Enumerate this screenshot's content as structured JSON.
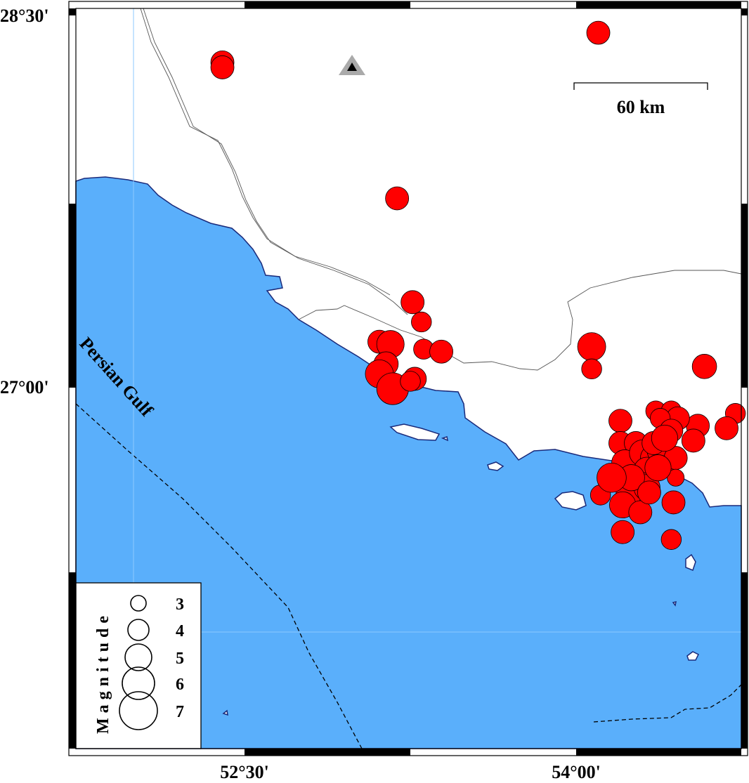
{
  "map": {
    "sea_label": "Persian Gulf",
    "scale_bar": {
      "label": "60 km",
      "length_km": 60
    },
    "lon_ticks": [
      {
        "label": "52°30'",
        "lon": 52.5
      },
      {
        "label": "54°00'",
        "lon": 54.0
      }
    ],
    "lat_ticks": [
      {
        "label": "28°30'",
        "lat": 28.5
      },
      {
        "label": "27°00'",
        "lat": 27.0
      }
    ],
    "colors": {
      "sea": "#5aaffb",
      "land": "#ffffff",
      "event": "#ff0000",
      "coastline": "#1a2a7a",
      "station": "#000000",
      "station_halo": "#aaaaaa"
    },
    "station": {
      "symbol": "triangle",
      "lon": 52.99,
      "lat": 28.29
    },
    "legend": {
      "title": "Magnitude",
      "magnitudes": [
        {
          "label": "3",
          "mag": 3
        },
        {
          "label": "4",
          "mag": 4
        },
        {
          "label": "5",
          "mag": 5
        },
        {
          "label": "6",
          "mag": 6
        },
        {
          "label": "7",
          "mag": 7
        }
      ]
    },
    "events": [
      {
        "lon": 54.1,
        "lat": 28.43,
        "mag": 4
      },
      {
        "lon": 52.4,
        "lat": 28.31,
        "mag": 4
      },
      {
        "lon": 52.4,
        "lat": 28.29,
        "mag": 4
      },
      {
        "lon": 53.19,
        "lat": 27.76,
        "mag": 4
      },
      {
        "lon": 53.26,
        "lat": 27.34,
        "mag": 4
      },
      {
        "lon": 53.3,
        "lat": 27.26,
        "mag": 3.5
      },
      {
        "lon": 53.11,
        "lat": 27.18,
        "mag": 4
      },
      {
        "lon": 53.16,
        "lat": 27.17,
        "mag": 4.7
      },
      {
        "lon": 53.31,
        "lat": 27.15,
        "mag": 3.5
      },
      {
        "lon": 53.39,
        "lat": 27.14,
        "mag": 4
      },
      {
        "lon": 53.14,
        "lat": 27.09,
        "mag": 4.2
      },
      {
        "lon": 53.11,
        "lat": 27.05,
        "mag": 4.8
      },
      {
        "lon": 53.17,
        "lat": 26.99,
        "mag": 5.4
      },
      {
        "lon": 53.27,
        "lat": 27.03,
        "mag": 4
      },
      {
        "lon": 53.25,
        "lat": 27.02,
        "mag": 3.5
      },
      {
        "lon": 54.07,
        "lat": 27.16,
        "mag": 4.8
      },
      {
        "lon": 54.07,
        "lat": 27.07,
        "mag": 3.5
      },
      {
        "lon": 54.58,
        "lat": 27.08,
        "mag": 4.2
      },
      {
        "lon": 54.2,
        "lat": 26.86,
        "mag": 4
      },
      {
        "lon": 54.2,
        "lat": 26.77,
        "mag": 4
      },
      {
        "lon": 54.72,
        "lat": 26.89,
        "mag": 3.5
      },
      {
        "lon": 54.68,
        "lat": 26.83,
        "mag": 4
      },
      {
        "lon": 54.55,
        "lat": 26.84,
        "mag": 4
      },
      {
        "lon": 54.53,
        "lat": 26.78,
        "mag": 4
      },
      {
        "lon": 54.36,
        "lat": 26.9,
        "mag": 3.5
      },
      {
        "lon": 54.43,
        "lat": 26.9,
        "mag": 3.5
      },
      {
        "lon": 54.46,
        "lat": 26.87,
        "mag": 4
      },
      {
        "lon": 54.38,
        "lat": 26.87,
        "mag": 3.5
      },
      {
        "lon": 54.43,
        "lat": 26.82,
        "mag": 4
      },
      {
        "lon": 54.27,
        "lat": 26.77,
        "mag": 4
      },
      {
        "lon": 54.22,
        "lat": 26.69,
        "mag": 4.5
      },
      {
        "lon": 54.3,
        "lat": 26.73,
        "mag": 4.5
      },
      {
        "lon": 54.35,
        "lat": 26.71,
        "mag": 4.5
      },
      {
        "lon": 54.32,
        "lat": 26.66,
        "mag": 4.5
      },
      {
        "lon": 54.38,
        "lat": 26.74,
        "mag": 4.5
      },
      {
        "lon": 54.41,
        "lat": 26.69,
        "mag": 4.5
      },
      {
        "lon": 54.45,
        "lat": 26.71,
        "mag": 4
      },
      {
        "lon": 54.29,
        "lat": 26.6,
        "mag": 4.5
      },
      {
        "lon": 54.24,
        "lat": 26.57,
        "mag": 4.5
      },
      {
        "lon": 54.32,
        "lat": 26.59,
        "mag": 4.5
      },
      {
        "lon": 54.21,
        "lat": 26.52,
        "mag": 4.5
      },
      {
        "lon": 54.29,
        "lat": 26.49,
        "mag": 4
      },
      {
        "lon": 54.44,
        "lat": 26.53,
        "mag": 4
      },
      {
        "lon": 54.21,
        "lat": 26.41,
        "mag": 4
      },
      {
        "lon": 54.43,
        "lat": 26.38,
        "mag": 3.5
      },
      {
        "lon": 54.11,
        "lat": 26.56,
        "mag": 3.5
      },
      {
        "lon": 54.45,
        "lat": 26.63,
        "mag": 3
      },
      {
        "lon": 54.35,
        "lat": 26.77,
        "mag": 4
      },
      {
        "lon": 54.4,
        "lat": 26.79,
        "mag": 4.5
      },
      {
        "lon": 54.25,
        "lat": 26.63,
        "mag": 4.5
      },
      {
        "lon": 54.37,
        "lat": 26.67,
        "mag": 4.5
      },
      {
        "lon": 54.33,
        "lat": 26.57,
        "mag": 4
      },
      {
        "lon": 54.16,
        "lat": 26.63,
        "mag": 5
      }
    ]
  }
}
